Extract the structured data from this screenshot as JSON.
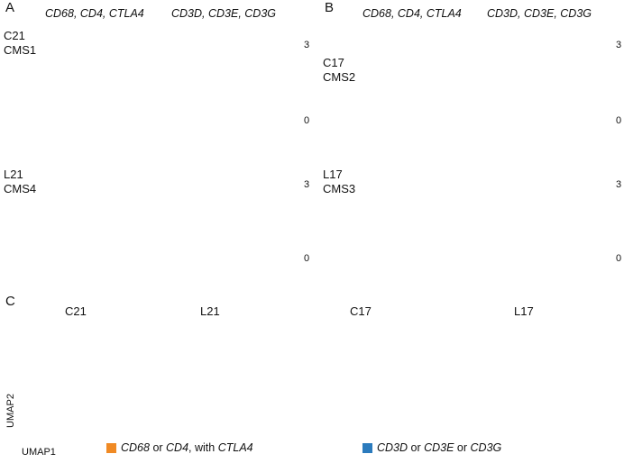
{
  "panels": {
    "A": {
      "letter": "A",
      "headers": [
        "CD68, CD4, CTLA4",
        "CD3D, CD3E, CD3G"
      ],
      "samples": [
        {
          "line1": "C21",
          "line2": "CMS1",
          "density": 0.85
        },
        {
          "line1": "L21",
          "line2": "CMS4",
          "density": 1.0
        }
      ]
    },
    "B": {
      "letter": "B",
      "headers": [
        "CD68, CD4, CTLA4",
        "CD3D, CD3E, CD3G"
      ],
      "samples": [
        {
          "line1": "C17",
          "line2": "CMS2",
          "density": 0.35
        },
        {
          "line1": "L17",
          "line2": "CMS3",
          "density": 0.1
        }
      ]
    },
    "C": {
      "letter": "C",
      "umaps": [
        "C21",
        "L21",
        "C17",
        "L17"
      ]
    }
  },
  "colorbar": {
    "max": "3",
    "min": "0",
    "colors": {
      "high": "#c2187a",
      "mid": "#f4f4f4",
      "low": "#2e8b1e"
    }
  },
  "axes": {
    "y": "UMAP2",
    "x": "UMAP1"
  },
  "legend": {
    "item1": {
      "color": "#f08a24",
      "a": "CD68",
      "b": " or ",
      "c": "CD4",
      "d": ", with ",
      "e": "CTLA4"
    },
    "item2": {
      "color": "#2b7bbd",
      "a": "CD3D",
      "b": " or ",
      "c": "CD3E",
      "d": " or ",
      "e": "CD3G"
    }
  }
}
